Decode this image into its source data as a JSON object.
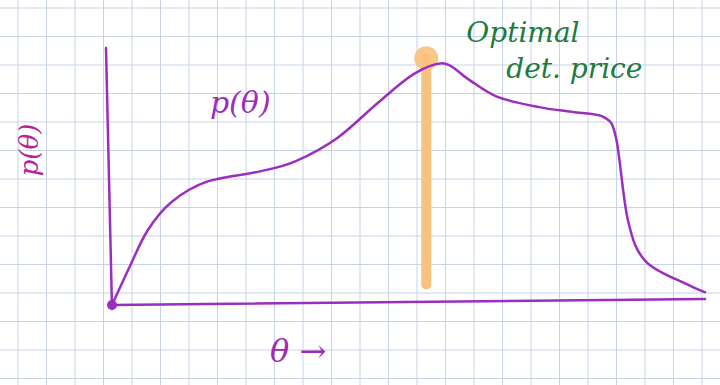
{
  "chart_data": {
    "type": "line",
    "x": [
      0,
      3,
      6,
      10,
      16,
      25,
      31,
      38,
      45,
      51,
      56,
      60,
      65,
      72,
      78,
      83,
      85,
      87,
      90,
      97,
      100
    ],
    "series": [
      {
        "name": "p(θ)",
        "color": "#9a2fbf",
        "values": [
          0,
          15,
          29,
          40,
          48,
          52,
          56,
          65,
          79,
          90,
          94,
          88,
          81,
          77,
          75,
          73,
          65,
          33,
          17,
          8,
          5
        ]
      }
    ],
    "xlim": [
      0,
      100
    ],
    "ylim": [
      0,
      100
    ],
    "xticks": [],
    "yticks": [],
    "tick_labels": false,
    "x_label": "θ →",
    "y_label": "p(θ)",
    "annotations": [
      {
        "text": "Optimal det. price",
        "x": 53,
        "y_from": 8,
        "y_to": 96,
        "color": "#f7c27e",
        "text_color": "#1e7b3c"
      }
    ]
  }
}
